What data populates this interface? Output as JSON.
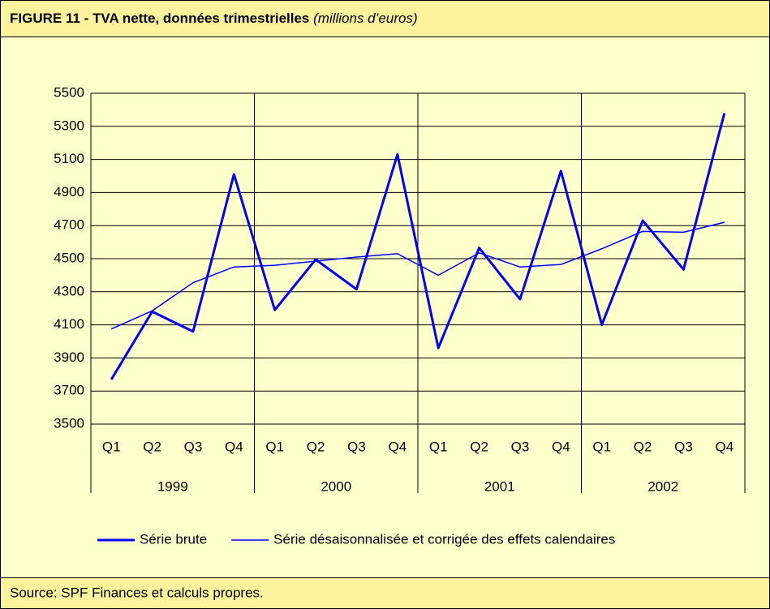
{
  "chart_data": {
    "type": "line",
    "title": "FIGURE 11 - TVA nette, données trimestrielles",
    "subtitle": "(millions d’euros)",
    "source": "Source: SPF Finances et calculs propres.",
    "categories": [
      "Q1",
      "Q2",
      "Q3",
      "Q4",
      "Q1",
      "Q2",
      "Q3",
      "Q4",
      "Q1",
      "Q2",
      "Q3",
      "Q4",
      "Q1",
      "Q2",
      "Q3",
      "Q4"
    ],
    "groups": [
      "1999",
      "2000",
      "2001",
      "2002"
    ],
    "series": [
      {
        "name": "Série brute",
        "color": "#0000ff",
        "width": 3,
        "values": [
          3770,
          4180,
          4060,
          5010,
          4190,
          4495,
          4315,
          5130,
          3960,
          4565,
          4255,
          5030,
          4100,
          4730,
          4435,
          5380
        ]
      },
      {
        "name": "Série désaisonnalisée et corrigée des effets calendaires",
        "color": "#0000ff",
        "width": 1.5,
        "values": [
          4075,
          4185,
          4355,
          4450,
          4460,
          4485,
          4510,
          4530,
          4400,
          4535,
          4450,
          4465,
          4560,
          4665,
          4660,
          4720
        ]
      }
    ],
    "ylim": [
      3500,
      5500
    ],
    "yticks": [
      3500,
      3700,
      3900,
      4100,
      4300,
      4500,
      4700,
      4900,
      5100,
      5300,
      5500
    ],
    "grid": true
  }
}
